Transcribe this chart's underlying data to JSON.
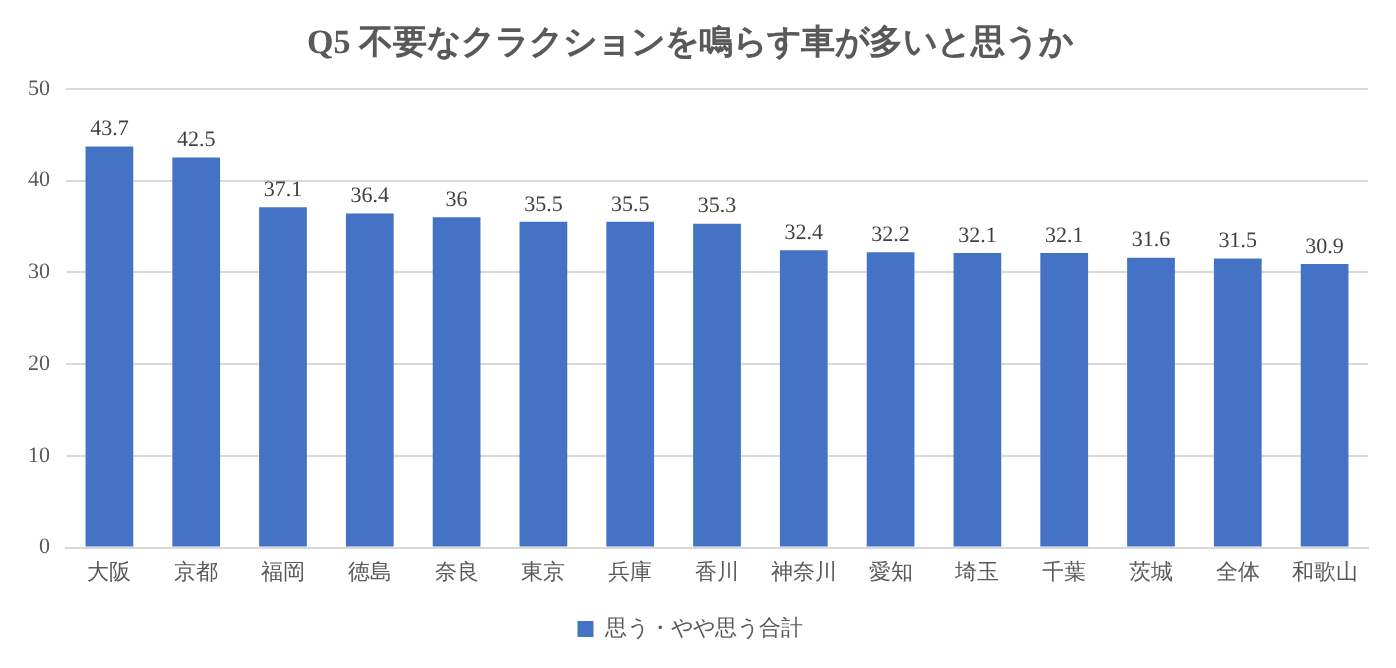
{
  "chart_data": {
    "type": "bar",
    "title": "Q5 不要なクラクションを鳴らす車が多いと思うか",
    "categories": [
      "大阪",
      "京都",
      "福岡",
      "徳島",
      "奈良",
      "東京",
      "兵庫",
      "香川",
      "神奈川",
      "愛知",
      "埼玉",
      "千葉",
      "茨城",
      "全体",
      "和歌山"
    ],
    "series": [
      {
        "name": "思う・やや思う合計",
        "color": "#4472c4",
        "values": [
          43.7,
          42.5,
          37.1,
          36.4,
          36,
          35.5,
          35.5,
          35.3,
          32.4,
          32.2,
          32.1,
          32.1,
          31.6,
          31.5,
          30.9
        ]
      }
    ],
    "ylim": [
      0,
      50
    ],
    "yticks": [
      0,
      10,
      20,
      30,
      40,
      50
    ],
    "grid": "y",
    "legend": "bottom",
    "data_labels": true
  }
}
